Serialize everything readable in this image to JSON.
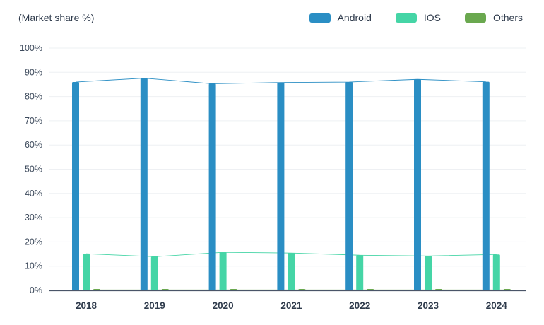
{
  "chart_data": {
    "type": "bar",
    "title": "",
    "xlabel": "",
    "ylabel": "(Market share %)",
    "ylim": [
      0,
      100
    ],
    "ytick_step": 10,
    "ytick_suffix": "%",
    "grid": true,
    "legend_position": "top-right",
    "connecting_lines": true,
    "categories": [
      "2018",
      "2019",
      "2020",
      "2021",
      "2022",
      "2023",
      "2024"
    ],
    "series": [
      {
        "name": "Android",
        "color": "#2a8ec4",
        "values": [
          86.0,
          87.6,
          85.3,
          85.8,
          86.0,
          87.1,
          86.1
        ]
      },
      {
        "name": "IOS",
        "color": "#45d5a6",
        "values": [
          15.1,
          13.9,
          15.7,
          15.4,
          14.5,
          14.2,
          14.8
        ]
      },
      {
        "name": "Others",
        "color": "#6aa84f",
        "values": [
          0.2,
          0.2,
          0.2,
          0.2,
          0.2,
          0.2,
          0.2
        ]
      }
    ]
  }
}
